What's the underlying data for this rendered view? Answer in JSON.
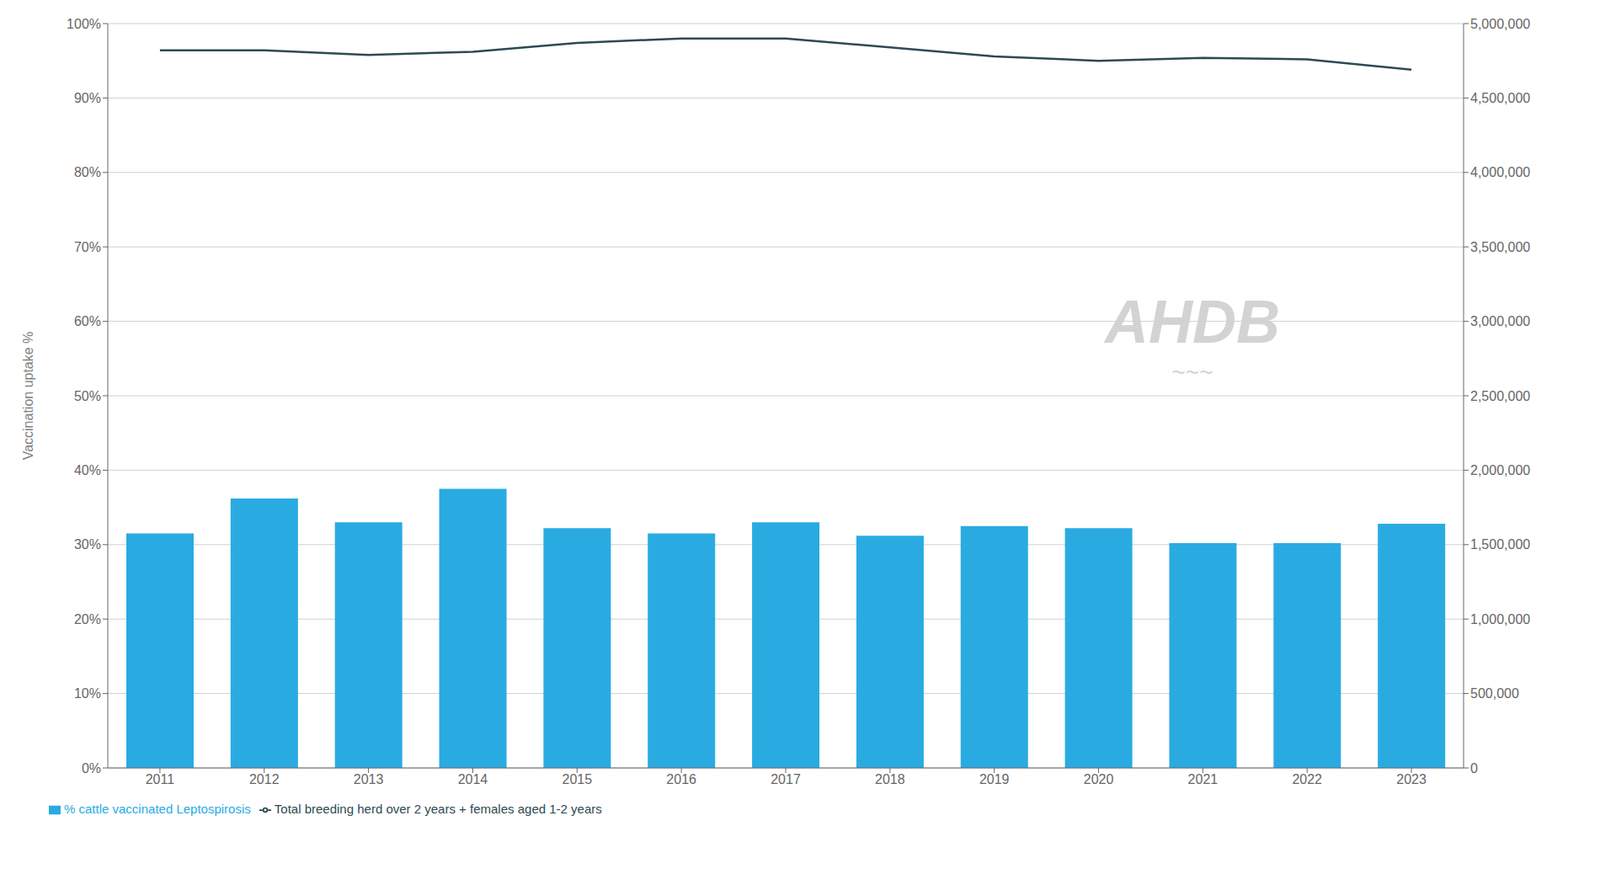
{
  "chart_data": {
    "type": "bar",
    "categories": [
      "2011",
      "2012",
      "2013",
      "2014",
      "2015",
      "2016",
      "2017",
      "2018",
      "2019",
      "2020",
      "2021",
      "2022",
      "2023"
    ],
    "series": [
      {
        "name": "% cattle vaccinated Leptospirosis",
        "type": "bar",
        "color": "#29ABE2",
        "values": [
          0.315,
          0.362,
          0.33,
          0.375,
          0.322,
          0.315,
          0.33,
          0.312,
          0.325,
          0.322,
          0.302,
          0.302,
          0.328
        ]
      },
      {
        "name": "Total breeding herd over 2 years + females aged 1-2 years",
        "type": "line",
        "axis": "y2",
        "color": "#2d4a52",
        "values": [
          4820000,
          4820000,
          4790000,
          4810000,
          4870000,
          4900000,
          4900000,
          4840000,
          4780000,
          4750000,
          4770000,
          4760000,
          4690000
        ]
      }
    ],
    "ylabel": "Vaccination uptake %",
    "ylim": [
      0,
      1.0
    ],
    "yticks": [
      {
        "value": 0.0,
        "label": "0%"
      },
      {
        "value": 0.1,
        "label": "10%"
      },
      {
        "value": 0.2,
        "label": "20%"
      },
      {
        "value": 0.3,
        "label": "30%"
      },
      {
        "value": 0.4,
        "label": "40%"
      },
      {
        "value": 0.5,
        "label": "50%"
      },
      {
        "value": 0.6,
        "label": "60%"
      },
      {
        "value": 0.7,
        "label": "70%"
      },
      {
        "value": 0.8,
        "label": "80%"
      },
      {
        "value": 0.9,
        "label": "90%"
      },
      {
        "value": 1.0,
        "label": "100%"
      }
    ],
    "y2lim": [
      0,
      5000000
    ],
    "y2ticks": [
      0,
      {
        "value": 500000,
        "label": "500,000"
      },
      {
        "value": 1000000,
        "label": "1,000,000"
      },
      {
        "value": 1500000,
        "label": "1,500,000"
      },
      {
        "value": 2000000,
        "label": "2,000,000"
      },
      {
        "value": 2500000,
        "label": "2,500,000"
      },
      {
        "value": 3000000,
        "label": "3,000,000"
      },
      {
        "value": 3500000,
        "label": "3,500,000"
      },
      {
        "value": 4000000,
        "label": "4,000,000"
      },
      {
        "value": 4500000,
        "label": "4,500,000"
      },
      {
        "value": 5000000,
        "label": "5,000,000"
      }
    ],
    "grid": "y",
    "legend": "bottom left",
    "annotations": [
      "AHDB",
      "~~~"
    ]
  }
}
